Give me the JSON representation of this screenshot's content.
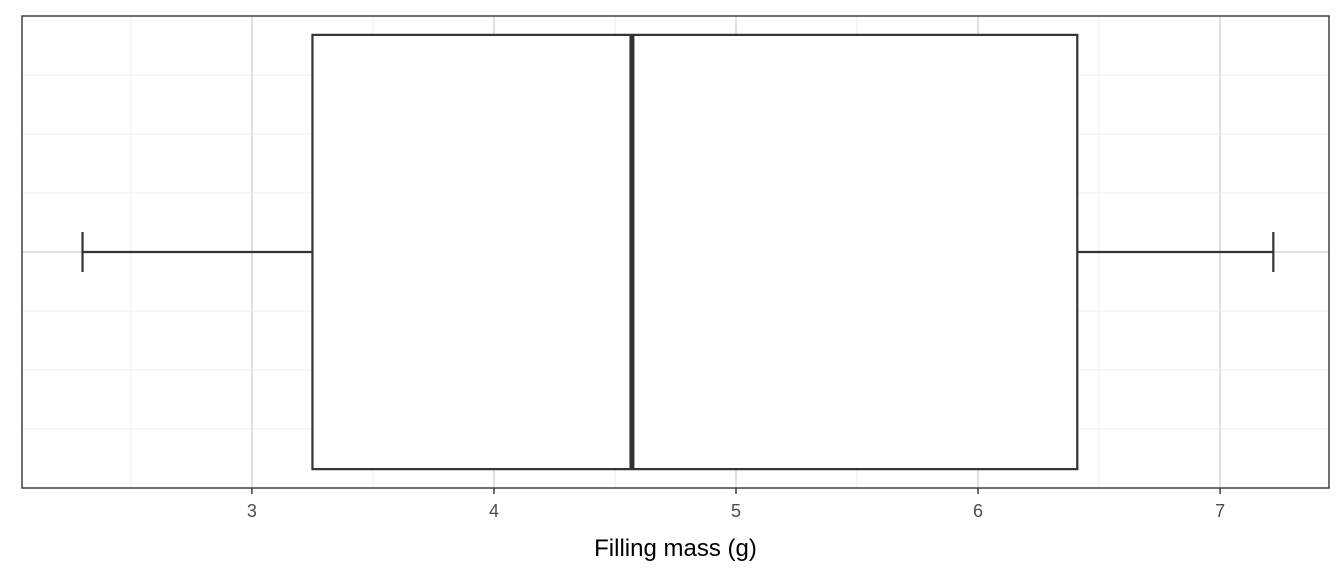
{
  "chart_data": {
    "type": "boxplot",
    "title": "",
    "xlabel": "Filling mass (g)",
    "ylabel": "",
    "xlim": [
      2.05,
      7.45
    ],
    "x_ticks": [
      3,
      4,
      5,
      6,
      7
    ],
    "x_tick_labels": [
      "3",
      "4",
      "5",
      "6",
      "7"
    ],
    "grid": true,
    "legend": "none",
    "theme": "bw",
    "box": {
      "whisker_low": 2.3,
      "q1": 3.25,
      "median": 4.57,
      "q3": 6.41,
      "whisker_high": 7.22
    },
    "colors": {
      "box_fill": "#ffffff",
      "box_stroke": "#333333",
      "grid_major": "#e0e0e0",
      "grid_minor": "#efefef",
      "panel_border": "#333333",
      "tick_text": "#4d4d4d"
    }
  }
}
